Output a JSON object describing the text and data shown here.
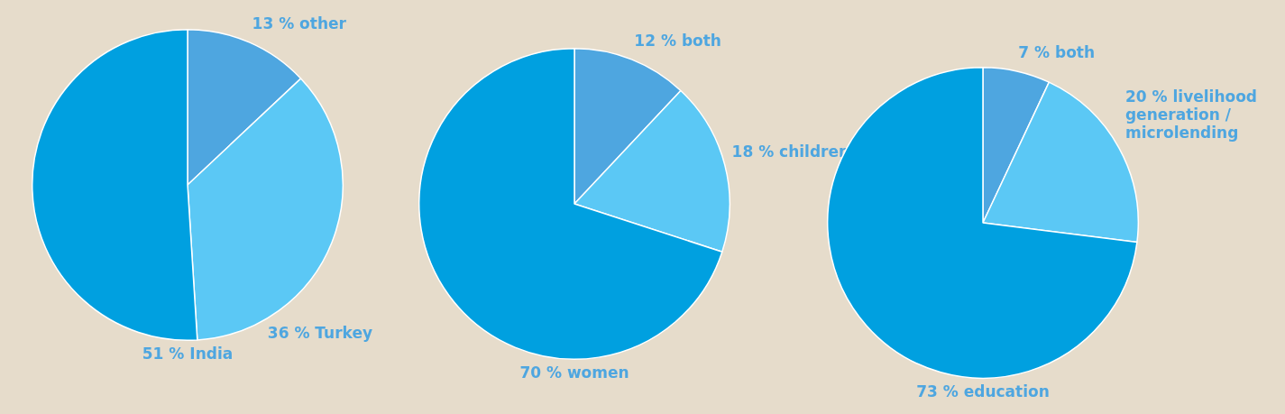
{
  "chart_data": [
    {
      "type": "pie",
      "categories": [
        "other",
        "Turkey",
        "India"
      ],
      "values": [
        13,
        36,
        51
      ],
      "value_labels": [
        "13 %",
        "36 %",
        "51 %"
      ],
      "colors": [
        "#4ea6e0",
        "#5bc8f5",
        "#00a0e0"
      ]
    },
    {
      "type": "pie",
      "categories": [
        "both",
        "children",
        "women"
      ],
      "values": [
        12,
        18,
        70
      ],
      "value_labels": [
        "12 %",
        "18 %",
        "70 %"
      ],
      "colors": [
        "#4ea6e0",
        "#5bc8f5",
        "#00a0e0"
      ]
    },
    {
      "type": "pie",
      "categories": [
        "both",
        "livelihood generation / microlending",
        "education"
      ],
      "values": [
        7,
        20,
        73
      ],
      "value_labels": [
        "7 %",
        "20 %",
        "73 %"
      ],
      "colors": [
        "#4ea6e0",
        "#5bc8f5",
        "#00a0e0"
      ]
    }
  ]
}
